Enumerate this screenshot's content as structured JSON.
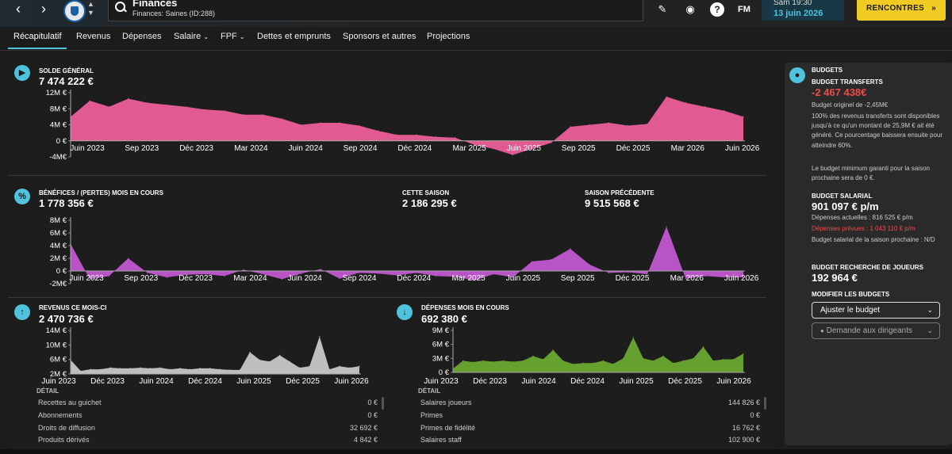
{
  "header": {
    "page_title": "Finances",
    "page_subtitle": "Finances: Saines (ID:288)",
    "date_time": "Sam 19:30",
    "date_day": "13 juin 2026",
    "fm_label": "FM",
    "help_label": "?",
    "continue_label": "RENCONTRES",
    "icons": [
      "back-arrow-icon",
      "forward-arrow-icon",
      "club-badge",
      "search-icon",
      "pencil-icon",
      "globe-icon",
      "help-icon",
      "fm-logo"
    ]
  },
  "tabs": [
    {
      "label": "Récapitulatif",
      "active": true
    },
    {
      "label": "Revenus"
    },
    {
      "label": "Dépenses"
    },
    {
      "label": "Salaire",
      "dropdown": true
    },
    {
      "label": "FPF",
      "dropdown": true
    },
    {
      "label": "Dettes et emprunts"
    },
    {
      "label": "Sponsors et autres"
    },
    {
      "label": "Projections"
    }
  ],
  "balance": {
    "label": "SOLDE GÉNÉRAL",
    "value": "7 474 222 €"
  },
  "profit": {
    "label": "BÉNÉFICES / (PERTES) MOIS EN COURS",
    "value": "1 778 356 €",
    "season_label": "CETTE SAISON",
    "season_value": "2 186 295 €",
    "prev_label": "SAISON PRÉCÉDENTE",
    "prev_value": "9 515 568 €"
  },
  "revenue": {
    "label": "REVENUS CE MOIS-CI",
    "value": "2 470 736 €",
    "detail_title": "DÉTAIL",
    "rows": [
      {
        "label": "Recettes au guichet",
        "value": "0 €"
      },
      {
        "label": "Abonnements",
        "value": "0 €"
      },
      {
        "label": "Droits de diffusion",
        "value": "32 692 €"
      },
      {
        "label": "Produits dérivés",
        "value": "4 842 €"
      }
    ]
  },
  "expenses": {
    "label": "DÉPENSES MOIS EN COURS",
    "value": "692 380 €",
    "detail_title": "DÉTAIL",
    "rows": [
      {
        "label": "Salaires joueurs",
        "value": "144 826 €"
      },
      {
        "label": "Primes",
        "value": "0 €"
      },
      {
        "label": "Primes de fidélité",
        "value": "16 762 €"
      },
      {
        "label": "Salaires staff",
        "value": "102 900 €"
      }
    ]
  },
  "budgets": {
    "title": "BUDGETS",
    "transfer_label": "BUDGET TRANSFERTS",
    "transfer_value": "-2 467 438€",
    "transfer_note": "Budget originel de -2,45M€",
    "transfer_desc": "100% des revenus transferts sont disponibles jusqu'à ce qu'un montant de 25,9M € ait été généré. Ce pourcentage baissera ensuite pour atteindre 60%.",
    "transfer_min": "Le budget minimum garanti pour la saison prochaine sera de 0 €.",
    "wage_label": "BUDGET SALARIAL",
    "wage_value": "901 097 € p/m",
    "wage_current": "Dépenses actuelles : 816 525 € p/m",
    "wage_planned": "Dépenses prévues : 1 043 110 € p/m",
    "wage_next": "Budget salarial de la saison prochaine : N/D",
    "scout_label": "BUDGET RECHERCHE DE JOUEURS",
    "scout_value": "192 964 €",
    "modify_label": "MODIFIER LES BUDGETS",
    "adjust_btn": "Ajuster le budget",
    "request_btn": "Demande aux dirigeants"
  },
  "chart_data": [
    {
      "type": "area",
      "name": "balance",
      "color": "#ec5e98",
      "y_ticks": [
        "12M €",
        "8M €",
        "4M €",
        "0 €",
        "-4M€"
      ],
      "ylim": [
        -4,
        12
      ],
      "x_labels": [
        "Juin 2023",
        "Sep 2023",
        "Déc 2023",
        "Mar 2024",
        "Juin 2024",
        "Sep 2024",
        "Déc 2024",
        "Mar 2025",
        "Juin 2025",
        "Sep 2025",
        "Déc 2025",
        "Mar 2026",
        "Juin 2026"
      ],
      "values": [
        6.0,
        10.0,
        8.5,
        10.5,
        9.5,
        9.0,
        8.5,
        7.8,
        7.5,
        6.5,
        6.5,
        5.5,
        4.0,
        4.5,
        4.5,
        3.8,
        2.5,
        1.5,
        1.5,
        1.0,
        0.8,
        -1.0,
        -2.0,
        -3.5,
        -2.0,
        -0.5,
        3.5,
        4.0,
        4.5,
        3.8,
        4.2,
        11.0,
        9.5,
        8.5,
        7.5,
        6.0
      ]
    },
    {
      "type": "area",
      "name": "profit",
      "color": "#c157d0",
      "y_ticks": [
        "8M €",
        "6M €",
        "4M €",
        "2M €",
        "0 €",
        "-2M€"
      ],
      "ylim": [
        -2,
        8
      ],
      "x_labels": [
        "Juin 2023",
        "Sep 2023",
        "Déc 2023",
        "Mar 2024",
        "Juin 2024",
        "Sep 2024",
        "Déc 2024",
        "Mar 2025",
        "Juin 2025",
        "Sep 2025",
        "Déc 2025",
        "Mar 2026",
        "Juin 2026"
      ],
      "values": [
        4.3,
        -1.3,
        -0.8,
        2.0,
        -0.3,
        -1.0,
        -0.6,
        -0.5,
        -0.8,
        0.2,
        -0.5,
        -1.3,
        -0.4,
        0.3,
        -1.2,
        -0.3,
        -0.4,
        -0.7,
        -0.3,
        -0.8,
        -0.9,
        -1.5,
        -0.5,
        -1.0,
        1.5,
        1.8,
        3.5,
        1.0,
        -0.3,
        -0.2,
        -0.5,
        7.0,
        -1.2,
        -0.8,
        -1.0,
        -1.0
      ]
    },
    {
      "type": "area",
      "name": "revenue",
      "color": "#c7c7c7",
      "y_ticks": [
        "14M €",
        "10M €",
        "6M €",
        "2M €"
      ],
      "ylim": [
        0,
        14
      ],
      "x_labels": [
        "Juin 2023",
        "Déc 2023",
        "Juin 2024",
        "Déc 2024",
        "Juin 2025",
        "Déc 2025",
        "Juin 2026"
      ],
      "values": [
        4.5,
        1.0,
        1.5,
        1.5,
        2.0,
        1.8,
        1.8,
        2.0,
        1.8,
        2.0,
        1.5,
        1.8,
        1.5,
        1.8,
        1.8,
        1.5,
        1.3,
        1.3,
        7.0,
        4.5,
        4.0,
        6.0,
        4.0,
        2.0,
        2.5,
        12.0,
        1.5,
        2.5,
        2.0,
        2.5
      ]
    },
    {
      "type": "area",
      "name": "expenses",
      "color": "#6aa82f",
      "y_ticks": [
        "9M €",
        "6M €",
        "3M €",
        "0 €"
      ],
      "ylim": [
        0,
        9
      ],
      "x_labels": [
        "Juin 2023",
        "Déc 2023",
        "Juin 2024",
        "Déc 2024",
        "Juin 2025",
        "Déc 2025",
        "Juin 2026"
      ],
      "values": [
        0.8,
        2.5,
        2.2,
        2.5,
        2.3,
        2.5,
        2.3,
        2.5,
        3.5,
        2.8,
        4.8,
        2.5,
        1.8,
        2.0,
        2.0,
        2.5,
        1.8,
        3.0,
        7.5,
        3.0,
        2.5,
        3.5,
        2.0,
        2.5,
        3.0,
        5.5,
        2.5,
        2.8,
        2.8,
        4.0
      ]
    }
  ]
}
